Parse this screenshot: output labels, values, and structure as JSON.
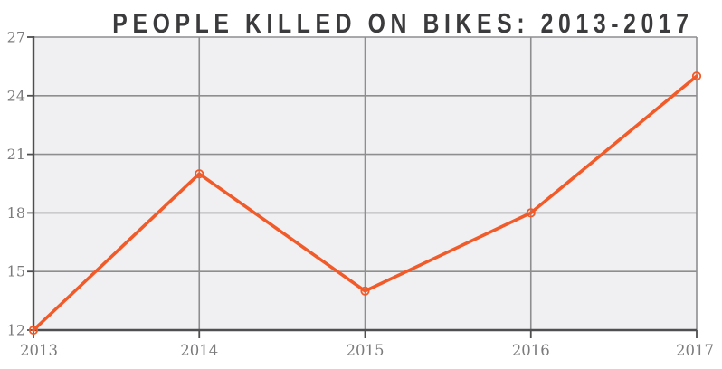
{
  "title": "PEOPLE KILLED ON BIKES: 2013-2017",
  "colors": {
    "title_text": "#3b3b3d",
    "line": "#f15a29",
    "marker_stroke": "#f15a29",
    "plot_background": "#f0f0f2",
    "gridline": "#8e8e90",
    "axis": "#4f4f51",
    "tick_label": "#7b7b7d",
    "page_background": "#ffffff"
  },
  "chart_data": {
    "type": "line",
    "title": "PEOPLE KILLED ON BIKES: 2013-2017",
    "categories": [
      "2013",
      "2014",
      "2015",
      "2016",
      "2017"
    ],
    "series": [
      {
        "name": "People killed on bikes",
        "values": [
          12,
          20,
          14,
          18,
          25
        ]
      }
    ],
    "xlabel": "",
    "ylabel": "",
    "ylim": [
      12,
      27
    ],
    "yticks": [
      12,
      15,
      18,
      21,
      24,
      27
    ],
    "grid": true,
    "legend": false,
    "marker": "open-circle",
    "line_color": "#f15a29"
  }
}
